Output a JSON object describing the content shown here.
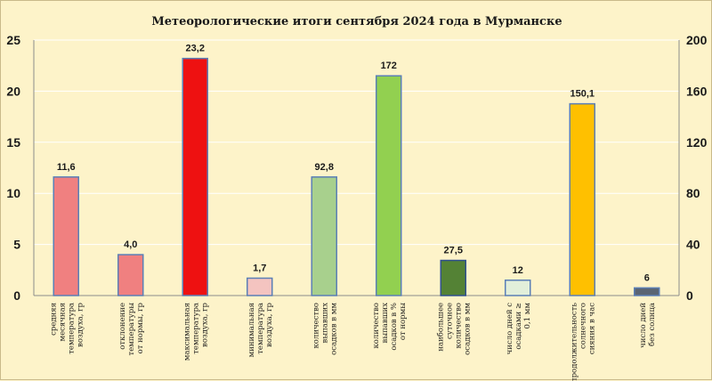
{
  "chart_data": {
    "type": "bar",
    "title": "Метеорологические итоги сентября 2024 года в Мурманске",
    "y_left": {
      "ylim": [
        0,
        25
      ],
      "ticks": [
        0,
        5,
        10,
        15,
        20,
        25
      ]
    },
    "y_right": {
      "ylim": [
        0,
        200
      ],
      "ticks": [
        0,
        40,
        80,
        120,
        160,
        200
      ]
    },
    "grid": "horizontal",
    "legend": "none",
    "categories": [
      "средняя месячная температура воздуха, гр",
      "отклонение температуры от нормы, гр",
      "максимальная температура воздуха, гр",
      "минимальная температура воздуха, гр",
      "количество выпавших осадков в мм",
      "количество выпавших осадков в % от нормы",
      "наибольшее суточное количество осадков в мм",
      "число дней с осадками ≥ 0,1 мм",
      "продолжительность солнечного сияния в час",
      "число дней без солнца"
    ],
    "bars": [
      {
        "value": 11.6,
        "label": "11,6",
        "axis": "left",
        "color": "#f08080",
        "border": "#5b7fb6"
      },
      {
        "value": 4.0,
        "label": "4,0",
        "axis": "left",
        "color": "#f08080",
        "border": "#5b7fb6"
      },
      {
        "value": 23.2,
        "label": "23,2",
        "axis": "left",
        "color": "#ee1111",
        "border": "#5b7fb6"
      },
      {
        "value": 1.7,
        "label": "1,7",
        "axis": "left",
        "color": "#f4c4c0",
        "border": "#5b7fb6"
      },
      {
        "value": 92.8,
        "label": "92,8",
        "axis": "right",
        "color": "#a8d08d",
        "border": "#5b7fb6"
      },
      {
        "value": 172,
        "label": "172",
        "axis": "right",
        "color": "#92d050",
        "border": "#5b7fb6"
      },
      {
        "value": 27.5,
        "label": "27,5",
        "axis": "right",
        "color": "#548235",
        "border": "#2f4f8f"
      },
      {
        "value": 12,
        "label": "12",
        "axis": "right",
        "color": "#e2efda",
        "border": "#5b7fb6"
      },
      {
        "value": 150.1,
        "label": "150,1",
        "axis": "right",
        "color": "#ffc000",
        "border": "#5b7fb6"
      },
      {
        "value": 6,
        "label": "6",
        "axis": "right",
        "color": "#5a6573",
        "border": "#5b7fb6"
      }
    ]
  }
}
